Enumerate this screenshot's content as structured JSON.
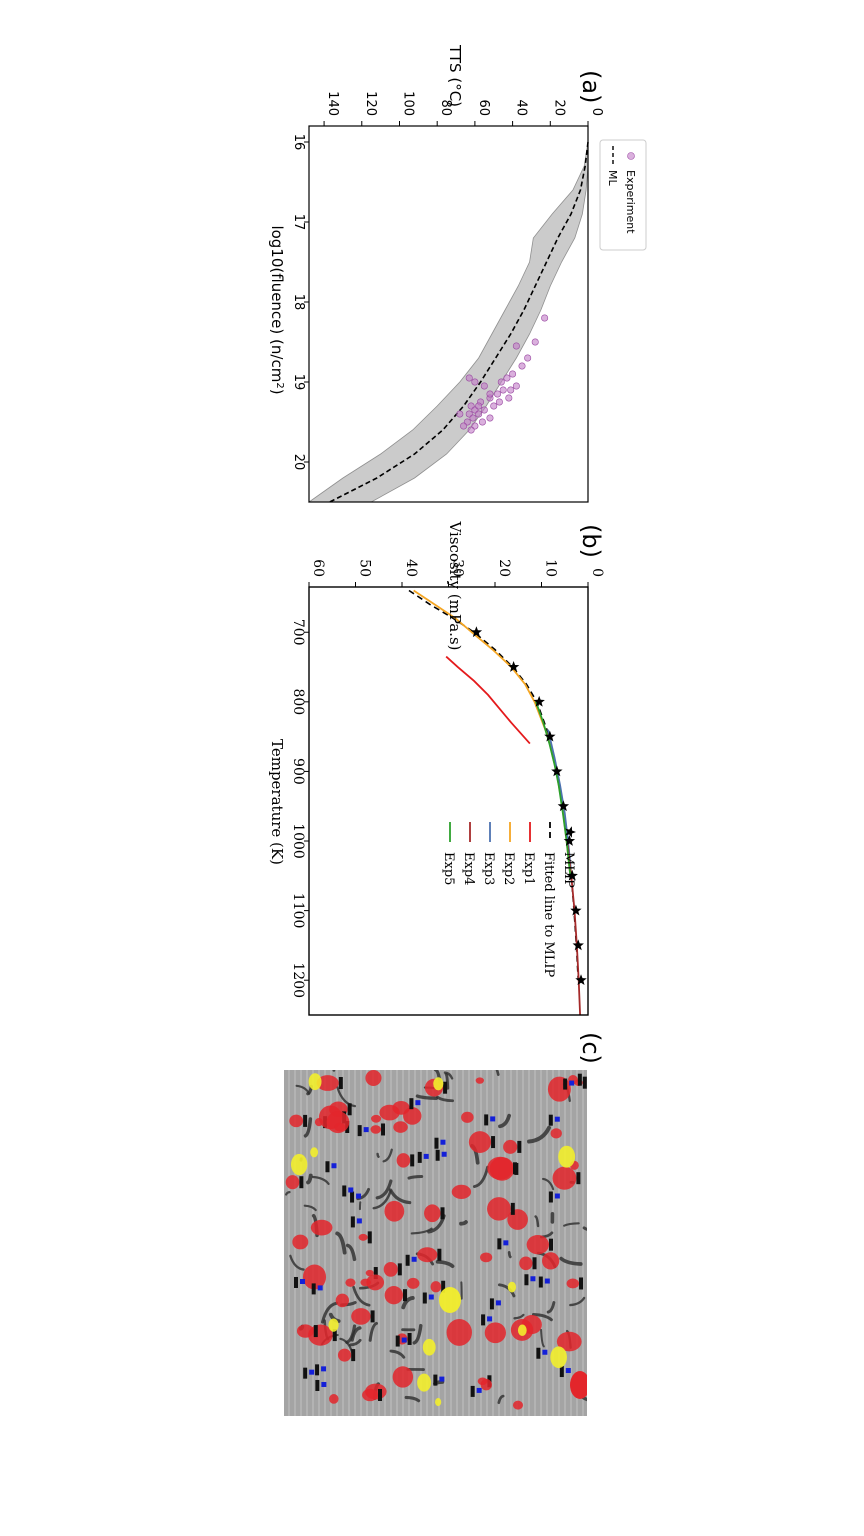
{
  "panels": [
    {
      "label": "(a)"
    },
    {
      "label": "(b)"
    },
    {
      "label": "(c)"
    }
  ],
  "chart_data": [
    {
      "type": "scatter",
      "panel": "(a)",
      "xlabel": "log10(fluence) (n/cm",
      "xlabel_sup": "2",
      "xlabel_tail": ")",
      "ylabel": "TTS (°C)",
      "xlim": [
        15.8,
        20.5
      ],
      "ylim": [
        0,
        148
      ],
      "xticks": [
        16,
        17,
        18,
        19,
        20
      ],
      "yticks": [
        0,
        20,
        40,
        60,
        80,
        100,
        120,
        140
      ],
      "legend": {
        "placement": "upper-left",
        "entries": [
          "Experiment",
          "ML"
        ]
      },
      "colors": {
        "experiment": "#c27bc7",
        "ml": "#000000",
        "band": "#b5b5b5"
      },
      "ml_line": {
        "x": [
          16.0,
          16.3,
          16.6,
          16.9,
          17.2,
          17.5,
          17.8,
          18.1,
          18.4,
          18.7,
          19.0,
          19.3,
          19.6,
          19.9,
          20.2,
          20.5
        ],
        "y": [
          0,
          1.5,
          4,
          9,
          16,
          22,
          28,
          34,
          41,
          49,
          57,
          66,
          77,
          92,
          112,
          137
        ]
      },
      "band_upper": {
        "x": [
          16.0,
          16.3,
          16.6,
          16.9,
          17.2,
          17.5,
          17.8,
          18.1,
          18.4,
          18.7,
          19.0,
          19.3,
          19.6,
          19.9,
          20.2,
          20.5
        ],
        "y": [
          0,
          2,
          8,
          19,
          29,
          31,
          37,
          44,
          51,
          58,
          68,
          80,
          93,
          110,
          130,
          150
        ]
      },
      "band_lower": {
        "x": [
          16.0,
          16.3,
          16.6,
          16.9,
          17.2,
          17.5,
          17.8,
          18.1,
          18.4,
          18.7,
          19.0,
          19.3,
          19.6,
          19.9,
          20.2,
          20.5
        ],
        "y": [
          0,
          0,
          1,
          3,
          7,
          14,
          20,
          25,
          31,
          38,
          46,
          54,
          63,
          75,
          92,
          115
        ]
      },
      "experiment_points": {
        "x": [
          18.2,
          18.5,
          18.55,
          18.7,
          18.8,
          18.9,
          18.95,
          19.0,
          19.05,
          19.1,
          19.1,
          19.15,
          19.2,
          19.2,
          19.25,
          19.25,
          19.3,
          19.3,
          19.35,
          19.35,
          19.4,
          19.4,
          19.45,
          19.45,
          19.5,
          19.5,
          19.55,
          19.55,
          19.6,
          18.95,
          19.0,
          19.05,
          19.15,
          19.3,
          19.4
        ],
        "y": [
          23,
          28,
          38,
          32,
          35,
          40,
          43,
          46,
          38,
          41,
          45,
          48,
          42,
          52,
          47,
          57,
          50,
          62,
          55,
          60,
          58,
          63,
          52,
          61,
          56,
          64,
          60,
          66,
          62,
          63,
          60,
          55,
          52,
          58,
          68
        ]
      }
    },
    {
      "type": "line",
      "panel": "(b)",
      "xlabel": "Temperature (K)",
      "ylabel": "Viscosity (mPa.s)",
      "xlim": [
        635,
        1250
      ],
      "ylim": [
        0,
        60
      ],
      "xticks": [
        700,
        800,
        900,
        1000,
        1100,
        1200
      ],
      "yticks": [
        0,
        10,
        20,
        30,
        40,
        50,
        60
      ],
      "legend": {
        "placement": "upper-right",
        "entries": [
          "MLIP",
          "Fitted line to MLIP",
          "Exp1",
          "Exp2",
          "Exp3",
          "Exp4",
          "Exp5"
        ]
      },
      "mlip": {
        "x": [
          700,
          750,
          800,
          850,
          900,
          950,
          1000,
          1050,
          1100,
          1150,
          1200
        ],
        "y": [
          24,
          16,
          10.5,
          8.2,
          6.7,
          5.3,
          4.0,
          3.4,
          2.6,
          2.1,
          1.5
        ]
      },
      "series": [
        {
          "name": "Fitted line to MLIP",
          "color": "#000000",
          "dash": true,
          "x": [
            640,
            660,
            680,
            700,
            725,
            750,
            775,
            800,
            850,
            900,
            950,
            1000,
            1050,
            1100,
            1150,
            1200
          ],
          "y": [
            38.5,
            34,
            29,
            24.5,
            20,
            16.2,
            13.2,
            11.0,
            8.3,
            6.6,
            5.3,
            4.3,
            3.6,
            3.0,
            2.5,
            2.1
          ]
        },
        {
          "name": "Exp1",
          "color": "#e41a1c",
          "x": [
            735,
            750,
            770,
            790,
            810,
            830,
            860
          ],
          "y": [
            30.5,
            28,
            24.5,
            21.5,
            19,
            16.5,
            12.5
          ]
        },
        {
          "name": "Exp2",
          "color": "#f5a623",
          "x": [
            640,
            660,
            680,
            700,
            725,
            750,
            775,
            800,
            850,
            900,
            950,
            1000,
            1050
          ],
          "y": [
            37.5,
            33,
            28.5,
            25,
            20.5,
            16.5,
            13.5,
            11.5,
            8.6,
            6.8,
            5.5,
            4.6,
            3.8
          ]
        },
        {
          "name": "Exp3",
          "color": "#4c72b0",
          "x": [
            840,
            880,
            920,
            960,
            1000,
            1040
          ],
          "y": [
            8.6,
            7.2,
            6.0,
            5.0,
            4.3,
            3.7
          ]
        },
        {
          "name": "Exp4",
          "color": "#a52a2a",
          "x": [
            1000,
            1050,
            1100,
            1150,
            1200,
            1250
          ],
          "y": [
            4.5,
            3.6,
            2.9,
            2.4,
            2.0,
            1.7
          ]
        },
        {
          "name": "Exp5",
          "color": "#2ca02c",
          "x": [
            800,
            830,
            860,
            890,
            920,
            960,
            1000,
            1050
          ],
          "y": [
            11.2,
            9.6,
            8.3,
            7.2,
            6.3,
            5.4,
            4.6,
            3.8
          ]
        }
      ]
    }
  ]
}
